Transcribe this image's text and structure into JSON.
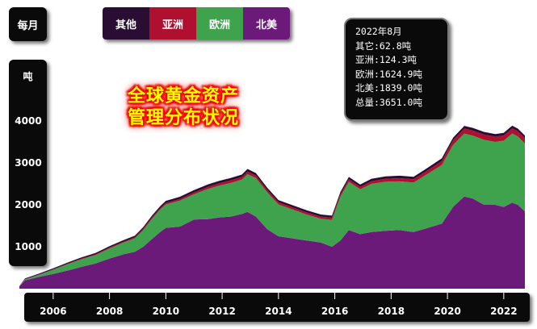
{
  "controls": {
    "period_label": "每月"
  },
  "legend": [
    {
      "label": "其他",
      "color": "#2a0d33"
    },
    {
      "label": "亚洲",
      "color": "#b01030"
    },
    {
      "label": "欧洲",
      "color": "#3fa34d"
    },
    {
      "label": "北美",
      "color": "#6b1a7a"
    }
  ],
  "info": {
    "date": "2022年8月",
    "lines": [
      "其它:62.8吨",
      "亚洲:124.3吨",
      "欧洲:1624.9吨",
      "北美:1839.0吨",
      "总量:3651.0吨"
    ]
  },
  "chart_data": {
    "type": "area",
    "stacked": true,
    "title": "全球黄金资产\n管理分布状况",
    "ylabel": "吨",
    "yticks": [
      1000,
      2000,
      3000,
      4000
    ],
    "ylim": [
      0,
      4700
    ],
    "xlim": [
      2004.8,
      2022.75
    ],
    "xticks": [
      "2006",
      "2008",
      "2010",
      "2012",
      "2014",
      "2016",
      "2018",
      "2020",
      "2022"
    ],
    "x": [
      2004.8,
      2005.0,
      2005.5,
      2006.0,
      2006.5,
      2007.0,
      2007.5,
      2008.0,
      2008.5,
      2008.9,
      2009.2,
      2009.5,
      2009.8,
      2010.0,
      2010.5,
      2011.0,
      2011.5,
      2011.9,
      2012.3,
      2012.7,
      2012.9,
      2013.2,
      2013.6,
      2014.0,
      2014.5,
      2015.0,
      2015.5,
      2015.9,
      2016.2,
      2016.5,
      2016.9,
      2017.3,
      2017.8,
      2018.3,
      2018.8,
      2019.3,
      2019.8,
      2020.2,
      2020.6,
      2020.9,
      2021.3,
      2021.7,
      2022.0,
      2022.3,
      2022.5,
      2022.75
    ],
    "series": [
      {
        "name": "北美",
        "color": "#6b1a7a",
        "values": [
          50,
          200,
          280,
          350,
          430,
          520,
          600,
          720,
          820,
          880,
          1000,
          1180,
          1350,
          1450,
          1480,
          1650,
          1660,
          1700,
          1720,
          1780,
          1830,
          1720,
          1420,
          1250,
          1200,
          1150,
          1100,
          1000,
          1150,
          1400,
          1300,
          1350,
          1380,
          1400,
          1350,
          1450,
          1550,
          1950,
          2200,
          2150,
          2000,
          2000,
          1950,
          2050,
          2000,
          1839
        ]
      },
      {
        "name": "欧洲",
        "color": "#3fa34d",
        "values": [
          0,
          20,
          50,
          100,
          150,
          180,
          200,
          240,
          280,
          320,
          400,
          480,
          540,
          560,
          620,
          600,
          720,
          760,
          800,
          820,
          900,
          920,
          880,
          760,
          690,
          620,
          570,
          640,
          1050,
          1150,
          1070,
          1150,
          1170,
          1160,
          1180,
          1290,
          1400,
          1480,
          1500,
          1500,
          1550,
          1500,
          1580,
          1650,
          1630,
          1625
        ]
      },
      {
        "name": "亚洲",
        "color": "#b01030",
        "values": [
          0,
          5,
          8,
          10,
          12,
          15,
          18,
          20,
          22,
          25,
          28,
          30,
          32,
          35,
          40,
          45,
          50,
          55,
          60,
          62,
          65,
          60,
          55,
          52,
          50,
          50,
          50,
          52,
          55,
          60,
          58,
          62,
          70,
          75,
          80,
          85,
          95,
          110,
          120,
          122,
          125,
          125,
          124,
          124,
          124,
          124
        ]
      },
      {
        "name": "其他",
        "color": "#2a0d33",
        "values": [
          10,
          20,
          22,
          25,
          28,
          30,
          32,
          35,
          38,
          40,
          42,
          45,
          48,
          50,
          52,
          55,
          58,
          58,
          60,
          60,
          60,
          58,
          55,
          52,
          50,
          50,
          50,
          50,
          52,
          55,
          55,
          57,
          58,
          60,
          60,
          60,
          62,
          62,
          62,
          62,
          63,
          63,
          63,
          63,
          63,
          63
        ]
      }
    ]
  }
}
